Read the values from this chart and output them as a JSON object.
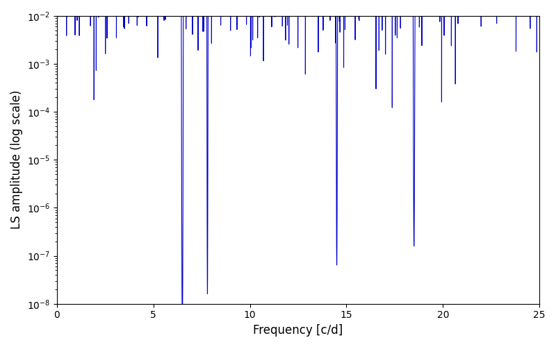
{
  "title": "",
  "xlabel": "Frequency [c/d]",
  "ylabel": "LS amplitude (log scale)",
  "line_color": "#0000cc",
  "line_width": 0.8,
  "xlim": [
    0,
    25
  ],
  "ylim_log": [
    -8,
    -2
  ],
  "xfreq_min": 0,
  "xfreq_max": 25,
  "n_points": 8000,
  "seed": 7,
  "background_color": "#ffffff",
  "figsize": [
    8.0,
    5.0
  ],
  "dpi": 100
}
